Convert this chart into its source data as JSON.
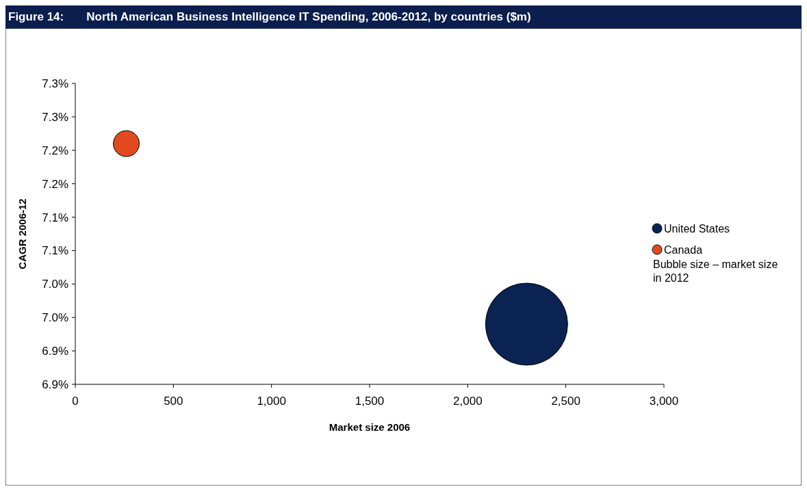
{
  "chart_data": {
    "type": "bubble",
    "title": "Figure 14:       North American Business Intelligence IT Spending, 2006-2012, by countries ($m)",
    "xlabel": "Market size 2006",
    "ylabel": "CAGR 2006-12",
    "xlim": [
      0,
      3000
    ],
    "xticks": [
      {
        "value": 0,
        "label": "0"
      },
      {
        "value": 500,
        "label": "500"
      },
      {
        "value": 1000,
        "label": "1,000"
      },
      {
        "value": 1500,
        "label": "1,500"
      },
      {
        "value": 2000,
        "label": "2,000"
      },
      {
        "value": 2500,
        "label": "2,500"
      },
      {
        "value": 3000,
        "label": "3,000"
      }
    ],
    "ylim": [
      6.85,
      7.3
    ],
    "yticks": [
      {
        "value": 6.85,
        "label": "6.9%"
      },
      {
        "value": 6.9,
        "label": "6.9%"
      },
      {
        "value": 6.95,
        "label": "7.0%"
      },
      {
        "value": 7.0,
        "label": "7.0%"
      },
      {
        "value": 7.05,
        "label": "7.1%"
      },
      {
        "value": 7.1,
        "label": "7.1%"
      },
      {
        "value": 7.15,
        "label": "7.2%"
      },
      {
        "value": 7.2,
        "label": "7.2%"
      },
      {
        "value": 7.25,
        "label": "7.3%"
      },
      {
        "value": 7.3,
        "label": "7.3%"
      }
    ],
    "series": [
      {
        "name": "United States",
        "color": "#0b2352",
        "x": [
          2300
        ],
        "values": [
          6.94
        ],
        "sizes": [
          1
        ]
      },
      {
        "name": "Canada",
        "color": "#e04a1e",
        "x": [
          260
        ],
        "values": [
          7.21
        ],
        "sizes": [
          0.1
        ]
      }
    ],
    "legend": "right",
    "annotations": [
      "Bubble size – market size in 2012"
    ]
  }
}
